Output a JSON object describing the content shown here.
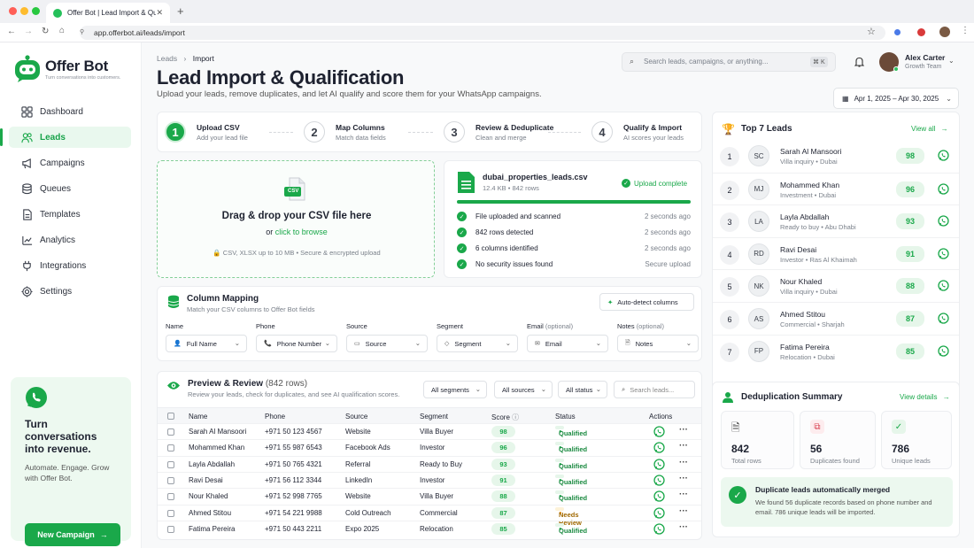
{
  "browser": {
    "tab_title": "Offer Bot | Lead Import & Qualifi",
    "url": "app.offerbot.ai/leads/import"
  },
  "brand": {
    "name": "Offer Bot",
    "tagline": "Turn conversations into customers.",
    "accent": "#1aa84a"
  },
  "sidebar": {
    "items": [
      {
        "label": "Dashboard",
        "icon": "grid-icon"
      },
      {
        "label": "Leads",
        "icon": "users-icon",
        "active": true
      },
      {
        "label": "Campaigns",
        "icon": "megaphone-icon"
      },
      {
        "label": "Queues",
        "icon": "database-icon"
      },
      {
        "label": "Templates",
        "icon": "document-icon"
      },
      {
        "label": "Analytics",
        "icon": "chart-icon"
      },
      {
        "label": "Integrations",
        "icon": "plug-icon"
      },
      {
        "label": "Settings",
        "icon": "gear-icon"
      }
    ],
    "promo": {
      "title": "Turn conversations into revenue.",
      "text": "Automate. Engage. Grow with Offer Bot.",
      "button": "New Campaign"
    }
  },
  "header": {
    "breadcrumb": [
      "Leads",
      "Import"
    ],
    "title": "Lead Import & Qualification",
    "subtitle": "Upload your leads, remove duplicates, and let AI qualify and score them for your WhatsApp campaigns.",
    "search_placeholder": "Search leads, campaigns, or anything...",
    "shortcut": "⌘ K",
    "user": {
      "name": "Alex Carter",
      "team": "Growth Team"
    },
    "date_range": "Apr 1, 2025 – Apr 30, 2025"
  },
  "steps": [
    {
      "num": "1",
      "title": "Upload CSV",
      "sub": "Add your lead file"
    },
    {
      "num": "2",
      "title": "Map Columns",
      "sub": "Match data fields"
    },
    {
      "num": "3",
      "title": "Review & Deduplicate",
      "sub": "Clean and merge"
    },
    {
      "num": "4",
      "title": "Qualify & Import",
      "sub": "AI scores your leads"
    }
  ],
  "upload": {
    "badge": "CSV",
    "title": "Drag & drop your CSV file here",
    "or": "or",
    "browse": "click to browse",
    "note": "CSV, XLSX up to 10 MB  •  Secure & encrypted upload"
  },
  "file": {
    "name": "dubai_properties_leads.csv",
    "meta": "12.4 KB • 842 rows",
    "status": "Upload complete",
    "progress": 1.0,
    "checks": [
      {
        "label": "File uploaded and scanned",
        "time": "2 seconds ago"
      },
      {
        "label": "842 rows detected",
        "time": "2 seconds ago"
      },
      {
        "label": "6 columns identified",
        "time": "2 seconds ago"
      },
      {
        "label": "No security issues found",
        "time": "Secure upload"
      }
    ]
  },
  "mapping": {
    "title": "Column Mapping",
    "sub": "Match your CSV columns to Offer Bot fields",
    "auto": "Auto-detect columns",
    "fields": [
      {
        "label": "Name",
        "opt": "",
        "value": "Full Name"
      },
      {
        "label": "Phone",
        "opt": "",
        "value": "Phone Number"
      },
      {
        "label": "Source",
        "opt": "",
        "value": "Source"
      },
      {
        "label": "Segment",
        "opt": "",
        "value": "Segment"
      },
      {
        "label": "Email",
        "opt": "(optional)",
        "value": "Email"
      },
      {
        "label": "Notes",
        "opt": "(optional)",
        "value": "Notes"
      }
    ]
  },
  "preview": {
    "title": "Preview & Review",
    "count": "(842 rows)",
    "sub": "Review your leads, check for duplicates, and see AI qualification scores.",
    "filters": [
      "All segments",
      "All sources",
      "All status"
    ],
    "search_placeholder": "Search leads...",
    "columns": [
      "Name",
      "Phone",
      "Source",
      "Segment",
      "Score",
      "Status",
      "Actions"
    ],
    "rows": [
      {
        "name": "Sarah Al Mansoori",
        "phone": "+971 50 123 4567",
        "source": "Website",
        "segment": "Villa Buyer",
        "score": "98",
        "status": "Qualified"
      },
      {
        "name": "Mohammed Khan",
        "phone": "+971 55 987 6543",
        "source": "Facebook Ads",
        "segment": "Investor",
        "score": "96",
        "status": "Qualified"
      },
      {
        "name": "Layla Abdallah",
        "phone": "+971 50 765 4321",
        "source": "Referral",
        "segment": "Ready to Buy",
        "score": "93",
        "status": "Qualified"
      },
      {
        "name": "Ravi Desai",
        "phone": "+971 56 112 3344",
        "source": "LinkedIn",
        "segment": "Investor",
        "score": "91",
        "status": "Qualified"
      },
      {
        "name": "Nour Khaled",
        "phone": "+971 52 998 7765",
        "source": "Website",
        "segment": "Villa Buyer",
        "score": "88",
        "status": "Qualified"
      },
      {
        "name": "Ahmed Stitou",
        "phone": "+971 54 221 9988",
        "source": "Cold Outreach",
        "segment": "Commercial",
        "score": "87",
        "status": "Needs Review"
      },
      {
        "name": "Fatima Pereira",
        "phone": "+971 50 443 2211",
        "source": "Expo 2025",
        "segment": "Relocation",
        "score": "85",
        "status": "Qualified"
      }
    ]
  },
  "top_leads": {
    "title": "Top 7 Leads",
    "view_all": "View all",
    "items": [
      {
        "rank": "1",
        "initials": "SC",
        "name": "Sarah Al Mansoori",
        "type": "Villa inquiry",
        "city": "Dubai",
        "score": "98"
      },
      {
        "rank": "2",
        "initials": "MJ",
        "name": "Mohammed Khan",
        "type": "Investment",
        "city": "Dubai",
        "score": "96"
      },
      {
        "rank": "3",
        "initials": "LA",
        "name": "Layla Abdallah",
        "type": "Ready to buy",
        "city": "Abu Dhabi",
        "score": "93"
      },
      {
        "rank": "4",
        "initials": "RD",
        "name": "Ravi Desai",
        "type": "Investor",
        "city": "Ras Al Khaimah",
        "score": "91"
      },
      {
        "rank": "5",
        "initials": "NK",
        "name": "Nour Khaled",
        "type": "Villa inquiry",
        "city": "Dubai",
        "score": "88"
      },
      {
        "rank": "6",
        "initials": "AS",
        "name": "Ahmed Stitou",
        "type": "Commercial",
        "city": "Sharjah",
        "score": "87"
      },
      {
        "rank": "7",
        "initials": "FP",
        "name": "Fatima Pereira",
        "type": "Relocation",
        "city": "Dubai",
        "score": "85"
      }
    ]
  },
  "dedup": {
    "title": "Deduplication Summary",
    "view": "View details",
    "stats": [
      {
        "value": "842",
        "label": "Total rows"
      },
      {
        "value": "56",
        "label": "Duplicates found"
      },
      {
        "value": "786",
        "label": "Unique leads"
      }
    ],
    "merged_title": "Duplicate leads automatically merged",
    "merged_text": "We found 56 duplicate records based on phone number and email. 786 unique leads will be imported."
  }
}
